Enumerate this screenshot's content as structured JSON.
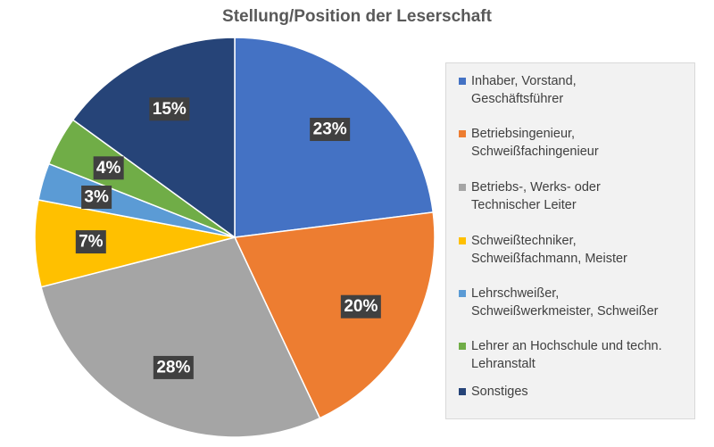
{
  "chart_data": {
    "type": "pie",
    "title": "Stellung/Position der Leserschaft",
    "slices": [
      {
        "label": "Inhaber, Vorstand,\nGeschäftsführer",
        "value": 23,
        "display": "23%",
        "color": "#4472c4"
      },
      {
        "label": "Betriebsingenieur,\nSchweißfachingenieur",
        "value": 20,
        "display": "20%",
        "color": "#ed7d31"
      },
      {
        "label": "Betriebs-, Werks- oder\nTechnischer Leiter",
        "value": 28,
        "display": "28%",
        "color": "#a5a5a5"
      },
      {
        "label": "Schweißtechniker,\nSchweißfachmann, Meister",
        "value": 7,
        "display": "7%",
        "color": "#ffc000"
      },
      {
        "label": "Lehrschweißer,\nSchweißwerkmeister, Schweißer",
        "value": 3,
        "display": "3%",
        "color": "#5b9bd5"
      },
      {
        "label": "Lehrer an Hochschule und techn.\nLehranstalt",
        "value": 4,
        "display": "4%",
        "color": "#70ad47"
      },
      {
        "label": "Sonstiges",
        "value": 15,
        "display": "15%",
        "color": "#264478"
      }
    ],
    "legend_position": "right",
    "label_box_color": "#404040"
  }
}
